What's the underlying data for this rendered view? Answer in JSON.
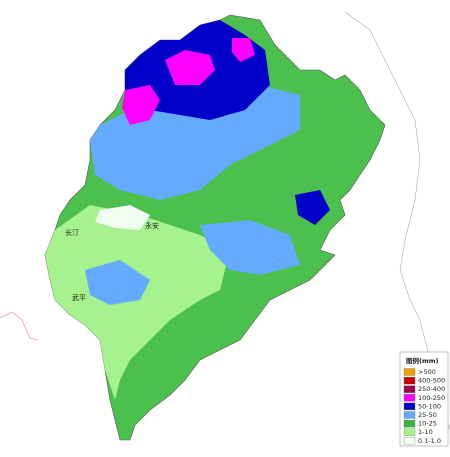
{
  "map": {
    "legend": {
      "title": "图例(mm)",
      "items": [
        {
          "label": ">500",
          "color": "#f0a000"
        },
        {
          "label": "400-500",
          "color": "#c80000"
        },
        {
          "label": "250-400",
          "color": "#a0004b"
        },
        {
          "label": "100-250",
          "color": "#ff00ff"
        },
        {
          "label": "50-100",
          "color": "#0000c8"
        },
        {
          "label": "25-50",
          "color": "#64aaff"
        },
        {
          "label": "10-25",
          "color": "#3cb43c"
        },
        {
          "label": "1-10",
          "color": "#a6f28f"
        },
        {
          "label": "0.1-1.0",
          "color": "#f0fff0"
        }
      ]
    },
    "places": [
      "武平",
      "长汀",
      "永安"
    ]
  }
}
